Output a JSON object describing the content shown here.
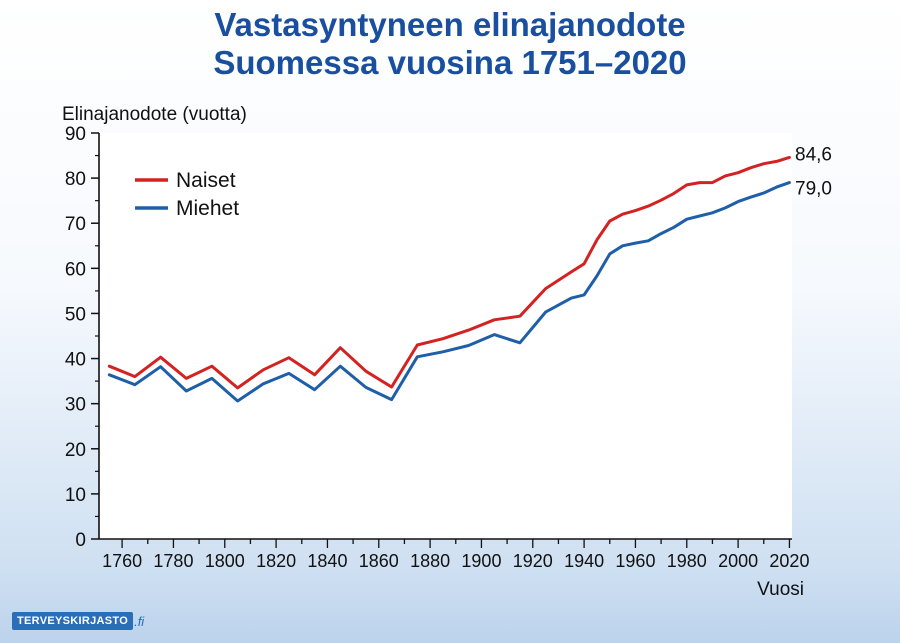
{
  "title_line1": "Vastasyntyneen elinajanodote",
  "title_line2": "Suomessa vuosina 1751–2020",
  "brand": {
    "name": "TERVEYSKIRJASTO",
    "suffix": ".fi"
  },
  "colors": {
    "title": "#1a4fa0",
    "naiset": "#d42222",
    "miehet": "#1f5fa8"
  },
  "chart_data": {
    "type": "line",
    "title": "Vastasyntyneen elinajanodote Suomessa vuosina 1751–2020",
    "ylabel": "Elinajanodote (vuotta)",
    "xlabel": "Vuosi",
    "xlim": [
      1751,
      2021
    ],
    "ylim": [
      0,
      90
    ],
    "xticks": [
      1760,
      1780,
      1800,
      1820,
      1840,
      1860,
      1880,
      1900,
      1920,
      1940,
      1960,
      1980,
      2000,
      2020
    ],
    "yticks": [
      0,
      10,
      20,
      30,
      40,
      50,
      60,
      70,
      80,
      90
    ],
    "legend_position": "top-left",
    "grid": false,
    "end_labels": {
      "naiset": "84,6",
      "miehet": "79,0"
    },
    "series": [
      {
        "name": "Naiset",
        "key": "naiset",
        "x": [
          1755,
          1765,
          1775,
          1785,
          1795,
          1805,
          1815,
          1825,
          1835,
          1845,
          1855,
          1865,
          1875,
          1885,
          1895,
          1905,
          1915,
          1925,
          1935,
          1940,
          1945,
          1950,
          1955,
          1960,
          1965,
          1970,
          1975,
          1980,
          1985,
          1990,
          1995,
          2000,
          2005,
          2010,
          2015,
          2020
        ],
        "y": [
          38.3,
          36,
          40.3,
          35.6,
          38.3,
          33.5,
          37.5,
          40.2,
          36.4,
          42.4,
          37.2,
          33.7,
          43,
          44.4,
          46.3,
          48.6,
          49.4,
          55.5,
          59.2,
          61,
          66.3,
          70.5,
          72,
          72.8,
          73.8,
          75.1,
          76.6,
          78.5,
          79,
          79,
          80.5,
          81.2,
          82.3,
          83.2,
          83.7,
          84.6
        ]
      },
      {
        "name": "Miehet",
        "key": "miehet",
        "x": [
          1755,
          1765,
          1775,
          1785,
          1795,
          1805,
          1815,
          1825,
          1835,
          1845,
          1855,
          1865,
          1875,
          1885,
          1895,
          1905,
          1915,
          1925,
          1935,
          1940,
          1945,
          1950,
          1955,
          1960,
          1965,
          1970,
          1975,
          1980,
          1985,
          1990,
          1995,
          2000,
          2005,
          2010,
          2015,
          2020
        ],
        "y": [
          36.4,
          34.2,
          38.2,
          32.8,
          35.6,
          30.6,
          34.4,
          36.7,
          33.1,
          38.3,
          33.6,
          30.9,
          40.4,
          41.5,
          42.9,
          45.3,
          43.5,
          50.3,
          53.4,
          54.1,
          58.3,
          63.2,
          65,
          65.6,
          66.1,
          67.7,
          69.1,
          70.9,
          71.6,
          72.3,
          73.4,
          74.8,
          75.8,
          76.7,
          78,
          79
        ]
      }
    ]
  }
}
